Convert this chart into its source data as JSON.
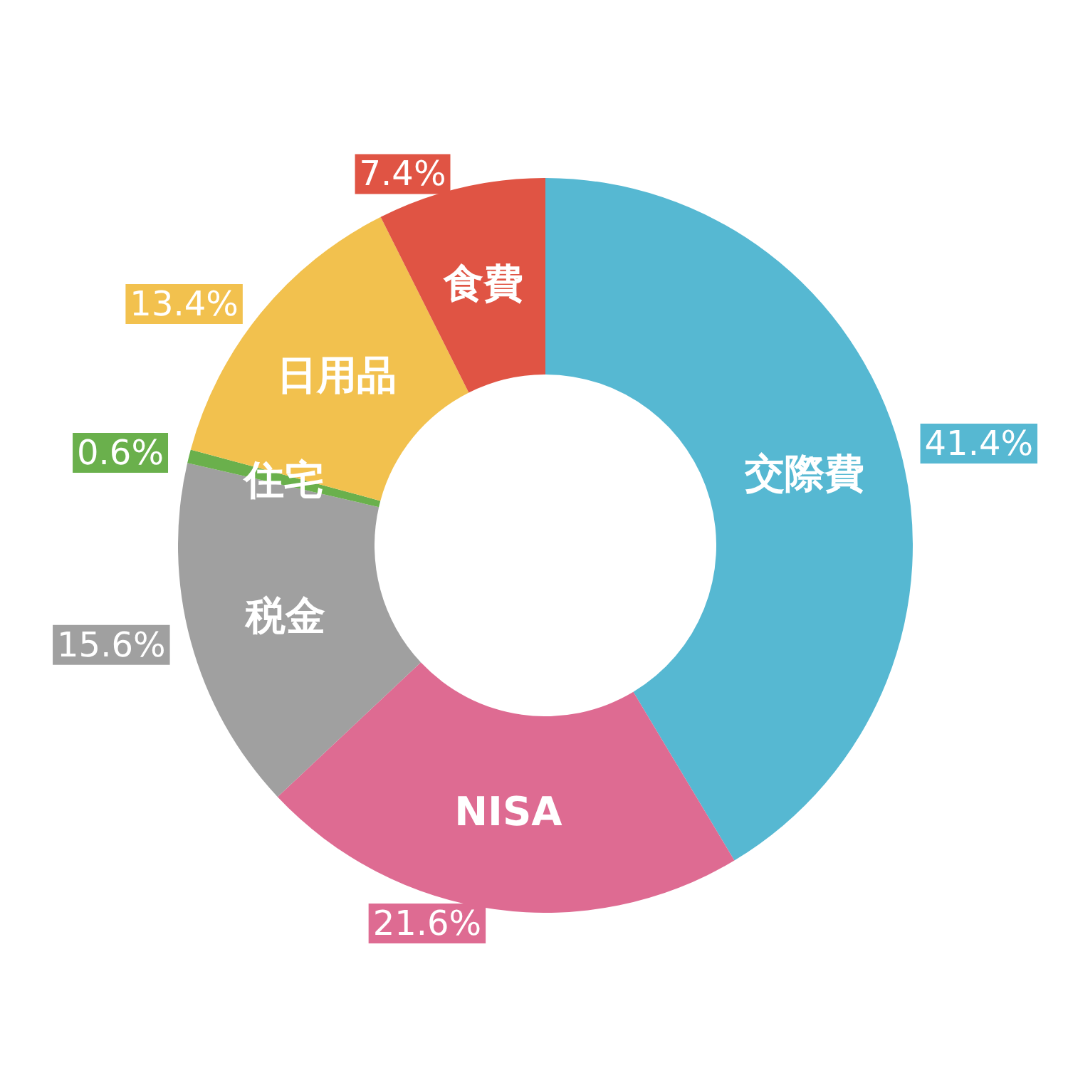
{
  "chart_data": {
    "type": "donut",
    "categories": [
      "交際費",
      "NISA",
      "税金",
      "住宅",
      "日用品",
      "食費"
    ],
    "values": [
      41.4,
      21.6,
      15.6,
      0.6,
      13.4,
      7.4
    ],
    "value_labels": [
      "41.4%",
      "21.6%",
      "15.6%",
      "0.6%",
      "13.4%",
      "7.4%"
    ],
    "colors": [
      "#56b8d2",
      "#de6b92",
      "#a0a0a0",
      "#6ab04c",
      "#f2c14e",
      "#e05444"
    ]
  }
}
